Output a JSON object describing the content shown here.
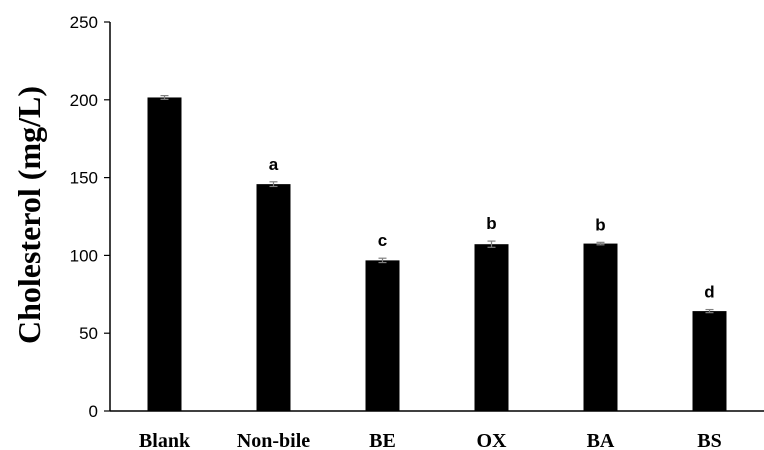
{
  "chart_data": {
    "type": "bar",
    "title": "",
    "xlabel": "",
    "ylabel": "Cholesterol (mg/L)",
    "ylim": [
      0,
      250
    ],
    "yticks": [
      0,
      50,
      100,
      150,
      200,
      250
    ],
    "grid": false,
    "legend": "none",
    "bar_color": "#000000",
    "categories": [
      "Blank",
      "Non-bile",
      "BE",
      "OX",
      "BA",
      "BS"
    ],
    "values": [
      201.5,
      145.8,
      96.8,
      107.2,
      107.6,
      64.2
    ],
    "errors": [
      1.2,
      1.5,
      1.4,
      2.0,
      0.8,
      1.0
    ],
    "significance": [
      "",
      "a",
      "c",
      "b",
      "b",
      "d"
    ]
  }
}
